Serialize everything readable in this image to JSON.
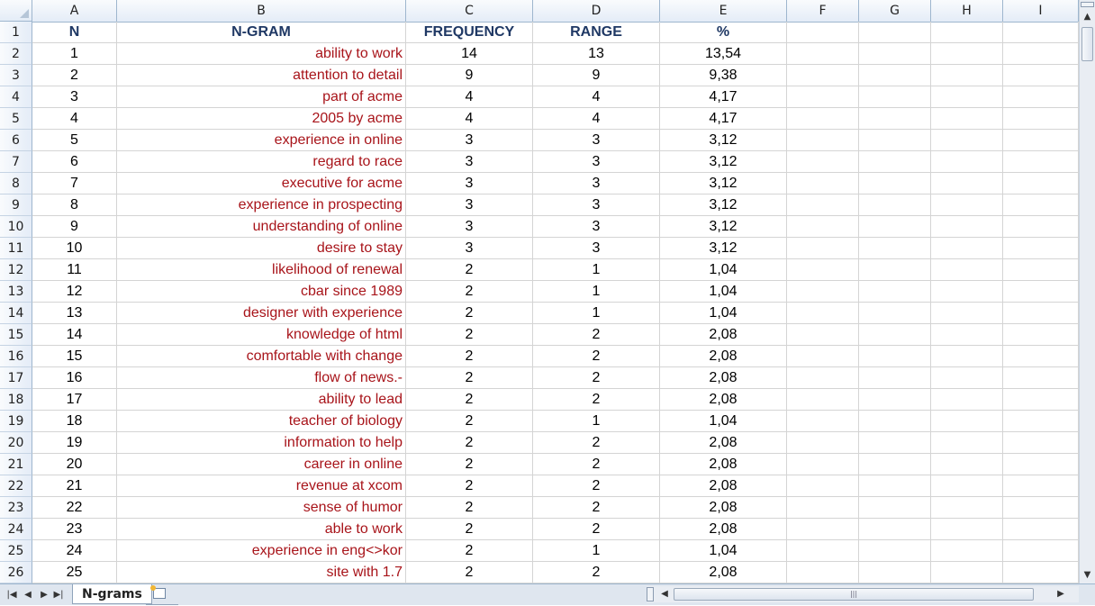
{
  "columns": [
    "A",
    "B",
    "C",
    "D",
    "E",
    "F",
    "G",
    "H",
    "I"
  ],
  "header_row": {
    "n": "N",
    "ngram": "N-GRAM",
    "frequency": "FREQUENCY",
    "range": "RANGE",
    "percent": "%"
  },
  "rows": [
    {
      "n": "1",
      "ngram": "ability to work",
      "freq": "14",
      "range": "13",
      "pct": "13,54"
    },
    {
      "n": "2",
      "ngram": "attention to detail",
      "freq": "9",
      "range": "9",
      "pct": "9,38"
    },
    {
      "n": "3",
      "ngram": "part of acme",
      "freq": "4",
      "range": "4",
      "pct": "4,17"
    },
    {
      "n": "4",
      "ngram": "2005 by acme",
      "freq": "4",
      "range": "4",
      "pct": "4,17"
    },
    {
      "n": "5",
      "ngram": "experience in online",
      "freq": "3",
      "range": "3",
      "pct": "3,12"
    },
    {
      "n": "6",
      "ngram": "regard to race",
      "freq": "3",
      "range": "3",
      "pct": "3,12"
    },
    {
      "n": "7",
      "ngram": "executive for acme",
      "freq": "3",
      "range": "3",
      "pct": "3,12"
    },
    {
      "n": "8",
      "ngram": "experience in prospecting",
      "freq": "3",
      "range": "3",
      "pct": "3,12"
    },
    {
      "n": "9",
      "ngram": "understanding of online",
      "freq": "3",
      "range": "3",
      "pct": "3,12"
    },
    {
      "n": "10",
      "ngram": "desire to stay",
      "freq": "3",
      "range": "3",
      "pct": "3,12"
    },
    {
      "n": "11",
      "ngram": "likelihood of renewal",
      "freq": "2",
      "range": "1",
      "pct": "1,04"
    },
    {
      "n": "12",
      "ngram": "cbar since 1989",
      "freq": "2",
      "range": "1",
      "pct": "1,04"
    },
    {
      "n": "13",
      "ngram": "designer with experience",
      "freq": "2",
      "range": "1",
      "pct": "1,04"
    },
    {
      "n": "14",
      "ngram": "knowledge of html",
      "freq": "2",
      "range": "2",
      "pct": "2,08"
    },
    {
      "n": "15",
      "ngram": "comfortable with change",
      "freq": "2",
      "range": "2",
      "pct": "2,08"
    },
    {
      "n": "16",
      "ngram": "flow of news.-",
      "freq": "2",
      "range": "2",
      "pct": "2,08"
    },
    {
      "n": "17",
      "ngram": "ability to lead",
      "freq": "2",
      "range": "2",
      "pct": "2,08"
    },
    {
      "n": "18",
      "ngram": "teacher of biology",
      "freq": "2",
      "range": "1",
      "pct": "1,04"
    },
    {
      "n": "19",
      "ngram": "information to help",
      "freq": "2",
      "range": "2",
      "pct": "2,08"
    },
    {
      "n": "20",
      "ngram": "career in online",
      "freq": "2",
      "range": "2",
      "pct": "2,08"
    },
    {
      "n": "21",
      "ngram": "revenue at xcom",
      "freq": "2",
      "range": "2",
      "pct": "2,08"
    },
    {
      "n": "22",
      "ngram": "sense of humor",
      "freq": "2",
      "range": "2",
      "pct": "2,08"
    },
    {
      "n": "23",
      "ngram": "able to work",
      "freq": "2",
      "range": "2",
      "pct": "2,08"
    },
    {
      "n": "24",
      "ngram": "experience in eng<>kor",
      "freq": "2",
      "range": "1",
      "pct": "1,04"
    },
    {
      "n": "25",
      "ngram": "site with 1.7",
      "freq": "2",
      "range": "2",
      "pct": "2,08"
    }
  ],
  "row_numbers": [
    "1",
    "2",
    "3",
    "4",
    "5",
    "6",
    "7",
    "8",
    "9",
    "10",
    "11",
    "12",
    "13",
    "14",
    "15",
    "16",
    "17",
    "18",
    "19",
    "20",
    "21",
    "22",
    "23",
    "24",
    "25",
    "26"
  ],
  "sheet_tabs": [
    {
      "label": "N-grams",
      "active": true
    }
  ],
  "icons": {
    "insert_sheet": "insert-sheet-icon"
  }
}
